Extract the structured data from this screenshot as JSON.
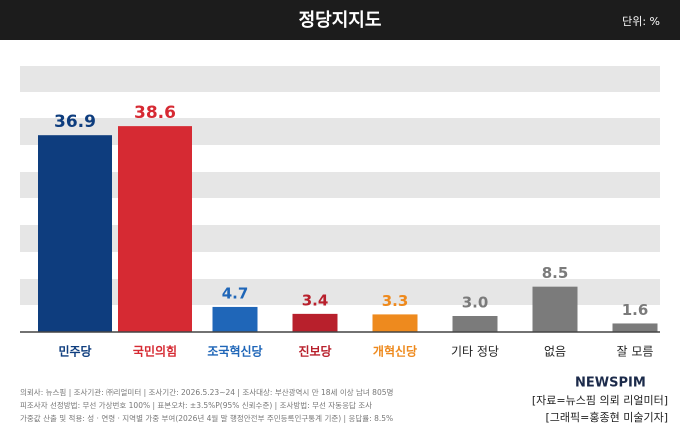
{
  "chart_data": {
    "type": "bar",
    "title": "정당지지도",
    "unit_label": "단위: %",
    "categories": [
      "민주당",
      "국민의힘",
      "조국혁신당",
      "진보당",
      "개혁신당",
      "기타 정당",
      "없음",
      "잘 모름"
    ],
    "values": [
      36.9,
      38.6,
      4.7,
      3.4,
      3.3,
      3.0,
      8.5,
      1.6
    ],
    "value_labels": [
      "36.9",
      "38.6",
      "4.7",
      "3.4",
      "3.3",
      "3.0",
      "8.5",
      "1.6"
    ],
    "colors": [
      "#0e3d7e",
      "#d62a33",
      "#1f66b8",
      "#b8202c",
      "#ee8a1e",
      "#7b7b7b",
      "#7b7b7b",
      "#7b7b7b"
    ],
    "label_colors": [
      "#0e3d7e",
      "#d62a33",
      "#1f66b8",
      "#b8202c",
      "#ee8a1e",
      "#222222",
      "#222222",
      "#222222"
    ],
    "ylim": [
      0,
      45
    ]
  },
  "notes": [
    "의뢰사: 뉴스핌 | 조사기관: ㈜리얼미터 | 조사기간: 2026.5.23~24 | 조사대상: 부산광역시 만 18세 이상 남녀 805명",
    "피조사자 선정방법: 무선 가상번호 100% | 표본오차: ±3.5%P(95% 신뢰수준) | 조사방법: 무선 자동응답 조사",
    "가중값 산출 및 적용: 성 · 연령 · 지역별 가중 부여(2026년 4월 말 행정안전부 주민등록인구통계 기준) | 응답률: 8.5%"
  ],
  "source": {
    "logo": "NEWSPIM",
    "lines": [
      "[자료=뉴스핌 의뢰 리얼미터]",
      "[그래픽=홍종현 미술기자]"
    ]
  }
}
